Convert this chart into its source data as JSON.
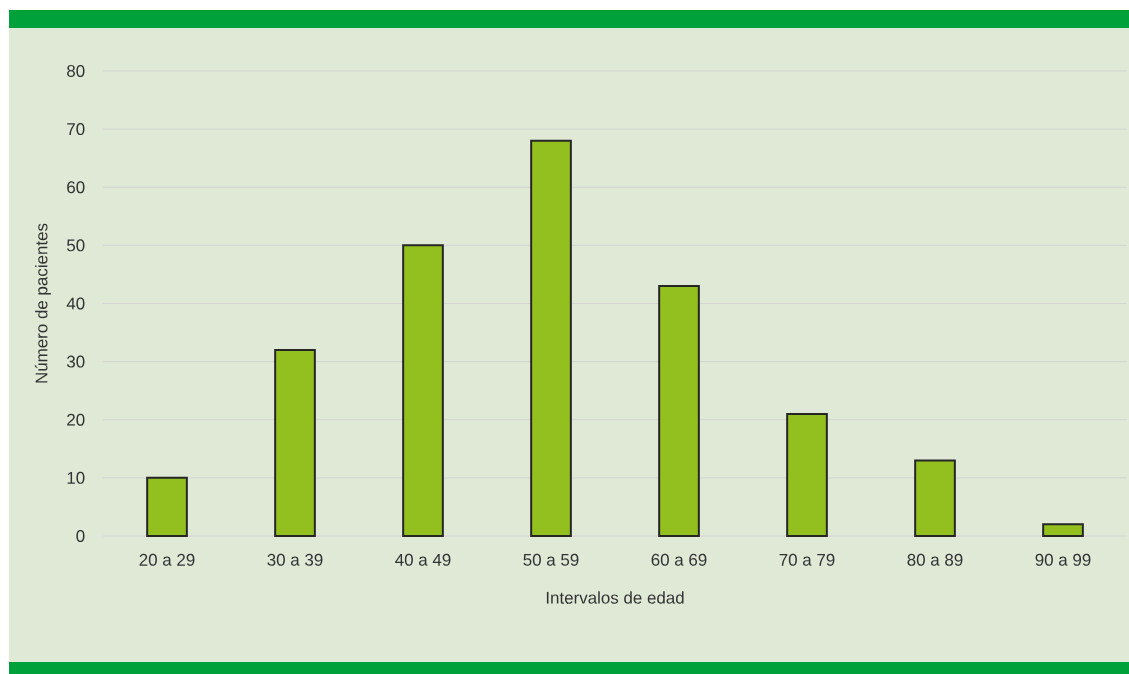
{
  "chart_data": {
    "type": "bar",
    "categories": [
      "20 a 29",
      "30 a 39",
      "40 a 49",
      "50 a 59",
      "60 a 69",
      "70 a 79",
      "80 a 89",
      "90 a 99"
    ],
    "values": [
      10,
      32,
      50,
      68,
      43,
      21,
      13,
      2
    ],
    "color": "#93c01f",
    "xlabel": "Intervalos de edad",
    "ylabel": "Número de pacientes",
    "ylim": [
      0,
      80
    ],
    "yticks": [
      0,
      10,
      20,
      30,
      40,
      50,
      60,
      70,
      80
    ],
    "grid": "y"
  }
}
